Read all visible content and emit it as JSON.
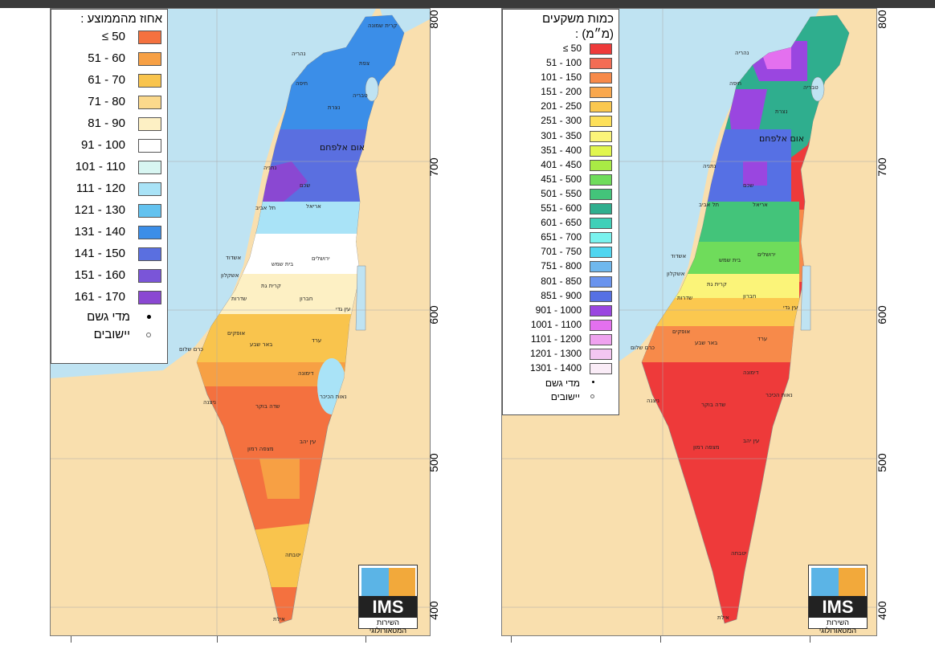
{
  "left_map": {
    "legend_title": "אחוז מהממוצע :",
    "classes": [
      {
        "label": "≤ 50",
        "color": "#f4713f"
      },
      {
        "label": "51 - 60",
        "color": "#f7a044"
      },
      {
        "label": "61 - 70",
        "color": "#f9c44d"
      },
      {
        "label": "71 - 80",
        "color": "#fbd98c"
      },
      {
        "label": "81 - 90",
        "color": "#fdf0c4"
      },
      {
        "label": "91 - 100",
        "color": "#ffffff"
      },
      {
        "label": "101 - 110",
        "color": "#d8f6f2"
      },
      {
        "label": "111 - 120",
        "color": "#a9e3f7"
      },
      {
        "label": "121 - 130",
        "color": "#63c2ef"
      },
      {
        "label": "131 - 140",
        "color": "#3b8ee8"
      },
      {
        "label": "141 - 150",
        "color": "#5a6fe0"
      },
      {
        "label": "151 - 160",
        "color": "#7a55d8"
      },
      {
        "label": "161 - 170",
        "color": "#8a48d2"
      }
    ],
    "symbols": [
      {
        "label": "מדי גשם",
        "type": "filled"
      },
      {
        "label": "יישובים",
        "type": "open"
      }
    ],
    "y_ticks": [
      "800",
      "700",
      "600",
      "500",
      "400"
    ]
  },
  "right_map": {
    "legend_title_1": "כמות משקעים",
    "legend_title_2": "(מ״מ) :",
    "classes": [
      {
        "label": "≤ 50",
        "color": "#ee3a3a"
      },
      {
        "label": "51 - 100",
        "color": "#f36c55"
      },
      {
        "label": "101 - 150",
        "color": "#f78a4a"
      },
      {
        "label": "151 - 200",
        "color": "#f9a84e"
      },
      {
        "label": "201 - 250",
        "color": "#fbc84f"
      },
      {
        "label": "251 - 300",
        "color": "#fde05a"
      },
      {
        "label": "301 - 350",
        "color": "#fbf479"
      },
      {
        "label": "351 - 400",
        "color": "#e1f64e"
      },
      {
        "label": "401 - 450",
        "color": "#a9eb45"
      },
      {
        "label": "451 - 500",
        "color": "#6fdc5b"
      },
      {
        "label": "501 - 550",
        "color": "#43c47a"
      },
      {
        "label": "551 - 600",
        "color": "#2fae8e"
      },
      {
        "label": "601 - 650",
        "color": "#3fd0b8"
      },
      {
        "label": "651 - 700",
        "color": "#7af2ee"
      },
      {
        "label": "701 - 750",
        "color": "#4fd6f0"
      },
      {
        "label": "751 - 800",
        "color": "#6fb8ee"
      },
      {
        "label": "801 - 850",
        "color": "#6a94ee"
      },
      {
        "label": "851 - 900",
        "color": "#5670e4"
      },
      {
        "label": "901 - 1000",
        "color": "#9a46e0"
      },
      {
        "label": "1001 - 1100",
        "color": "#e470ef"
      },
      {
        "label": "1101 - 1200",
        "color": "#efa2ef"
      },
      {
        "label": "1201 - 1300",
        "color": "#f3c6f2"
      },
      {
        "label": "1301 - 1400",
        "color": "#faecf7"
      }
    ],
    "symbols": [
      {
        "label": "מדי גשם",
        "type": "filled"
      },
      {
        "label": "יישובים",
        "type": "open"
      }
    ],
    "y_ticks": [
      "800",
      "700",
      "600",
      "500",
      "400"
    ]
  },
  "cities": {
    "um_al_fahm": "אום אלפחם",
    "haifa": "חיפה",
    "nahariya": "נהריה",
    "tzfat": "צפת",
    "tveria": "טבריה",
    "natzrat": "נצרת",
    "kiryat_shmona": "קרית שמונה",
    "netanya": "נתניה",
    "tel_aviv": "תל אביב",
    "shchem": "שכם",
    "ariel": "אריאל",
    "jerusalem": "ירושלים",
    "beit_shemesh": "בית שמש",
    "ashdod": "אשדוד",
    "ashkelon": "אשקלון",
    "kiryat_gat": "קרית גת",
    "hevron": "חברון",
    "sderot": "שדרות",
    "be_er_sheva": "באר שבע",
    "arad": "ערד",
    "dimona": "דימונה",
    "ofakim": "אופקים",
    "kerem_shalom": "כרם שלום",
    "sde_boker": "שדה בוקר",
    "mitzpe_ramon": "מצפה רמון",
    "yotvata": "יטבתה",
    "eilat": "אילת",
    "nitzana": "ניצנה",
    "ein_yahav": "עין יהב",
    "ein_gedi": "עין גדי",
    "neot_hakikar": "נאות הכיכר"
  },
  "logo": {
    "name": "IMS",
    "subtitle": "השירות המטאורולוגי"
  }
}
